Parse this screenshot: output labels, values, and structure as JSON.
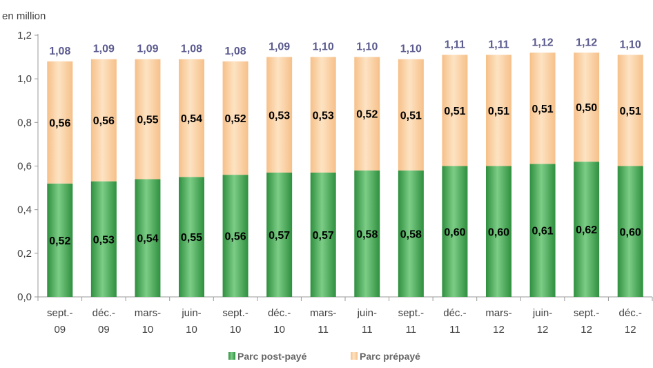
{
  "chart_data": {
    "type": "bar",
    "stacked": true,
    "unit_label": "en million",
    "categories": [
      [
        "sept.-",
        "09"
      ],
      [
        "déc.-",
        "09"
      ],
      [
        "mars-",
        "10"
      ],
      [
        "juin-",
        "10"
      ],
      [
        "sept.-",
        "10"
      ],
      [
        "déc.-",
        "10"
      ],
      [
        "mars-",
        "11"
      ],
      [
        "juin-",
        "11"
      ],
      [
        "sept.-",
        "11"
      ],
      [
        "déc.-",
        "11"
      ],
      [
        "mars-",
        "12"
      ],
      [
        "juin-",
        "12"
      ],
      [
        "sept.-",
        "12"
      ],
      [
        "déc.-",
        "12"
      ]
    ],
    "series": [
      {
        "name": "Parc post-payé",
        "color": "#4fae5e",
        "values": [
          0.52,
          0.53,
          0.54,
          0.55,
          0.56,
          0.57,
          0.57,
          0.58,
          0.58,
          0.6,
          0.6,
          0.61,
          0.62,
          0.6
        ],
        "labels": [
          "0,52",
          "0,53",
          "0,54",
          "0,55",
          "0,56",
          "0,57",
          "0,57",
          "0,58",
          "0,58",
          "0,60",
          "0,60",
          "0,61",
          "0,62",
          "0,60"
        ]
      },
      {
        "name": "Parc prépayé",
        "color": "#fbd4a7",
        "values": [
          0.56,
          0.56,
          0.55,
          0.54,
          0.52,
          0.53,
          0.53,
          0.52,
          0.51,
          0.51,
          0.51,
          0.51,
          0.5,
          0.51
        ],
        "labels": [
          "0,56",
          "0,56",
          "0,55",
          "0,54",
          "0,52",
          "0,53",
          "0,53",
          "0,52",
          "0,51",
          "0,51",
          "0,51",
          "0,51",
          "0,50",
          "0,51"
        ]
      }
    ],
    "totals": [
      1.08,
      1.09,
      1.09,
      1.08,
      1.08,
      1.09,
      1.1,
      1.1,
      1.1,
      1.11,
      1.11,
      1.12,
      1.12,
      1.1
    ],
    "total_labels": [
      "1,08",
      "1,09",
      "1,09",
      "1,08",
      "1,08",
      "1,09",
      "1,10",
      "1,10",
      "1,10",
      "1,11",
      "1,11",
      "1,12",
      "1,12",
      "1,10"
    ],
    "ylim": [
      0,
      1.2
    ],
    "yticks": [
      "0,0",
      "0,2",
      "0,4",
      "0,6",
      "0,8",
      "1,0",
      "1,2"
    ],
    "grid": false,
    "legend_position": "bottom"
  }
}
